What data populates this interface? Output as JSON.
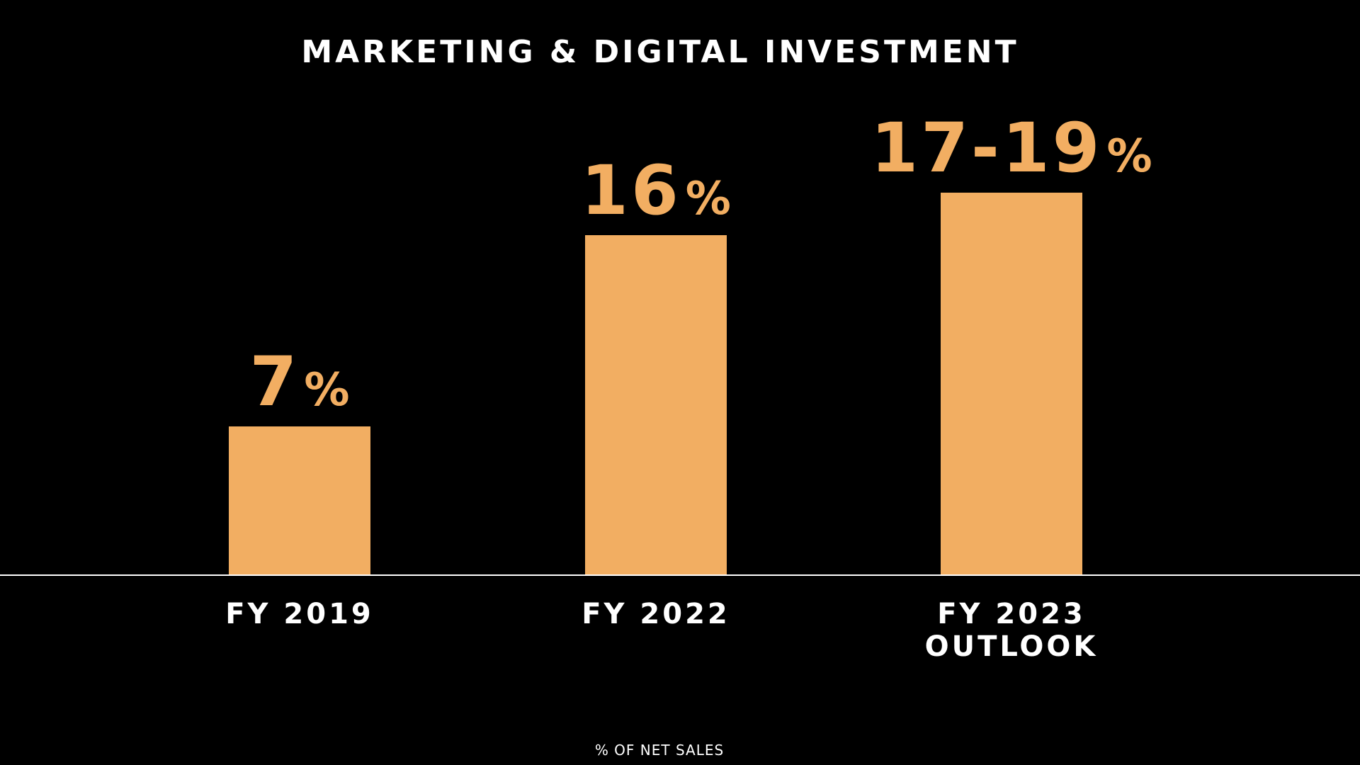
{
  "chart_data": {
    "type": "bar",
    "title": "MARKETING & DIGITAL INVESTMENT",
    "categories": [
      "FY 2019",
      "FY 2022",
      "FY 2023\nOUTLOOK"
    ],
    "values": [
      7,
      16,
      18
    ],
    "value_ranges": [
      null,
      null,
      [
        17,
        19
      ]
    ],
    "data_labels": [
      {
        "number": "7",
        "unit": "%"
      },
      {
        "number": "16",
        "unit": "%"
      },
      {
        "number": "17-19",
        "unit": "%"
      }
    ],
    "xlabel": "% OF NET SALES",
    "ylabel": "",
    "ylim": [
      0,
      18
    ],
    "grid": false,
    "legend": "none",
    "bar_color": "#F2AE62",
    "label_color": "#F2AE62",
    "text_color": "#FFFFFF",
    "background_color": "#000000",
    "baseline_color": "#FFFFFF"
  }
}
